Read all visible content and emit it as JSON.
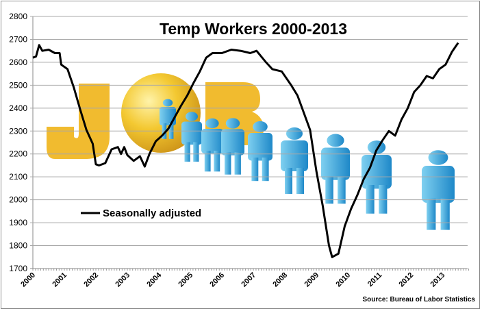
{
  "chart_data": {
    "type": "line",
    "title": "Temp Workers 2000-2013",
    "xlabel": "",
    "ylabel": "",
    "ylim": [
      1700,
      2800
    ],
    "xlim": [
      2000,
      2013.8
    ],
    "yticks": [
      "1700",
      "1800",
      "1900",
      "2000",
      "2100",
      "2200",
      "2300",
      "2400",
      "2500",
      "2600",
      "2700",
      "2800"
    ],
    "xticks": [
      "2000",
      "2001",
      "2002",
      "2003",
      "2004",
      "2005",
      "2006",
      "2007",
      "2008",
      "2009",
      "2010",
      "2011",
      "2012",
      "2013"
    ],
    "grid": "horizontal",
    "legend_position": "left-middle",
    "series": [
      {
        "name": "Seasonally adjusted",
        "color": "#000000",
        "x": [
          2000.0,
          2000.1,
          2000.2,
          2000.3,
          2000.5,
          2000.7,
          2000.85,
          2000.9,
          2001.1,
          2001.3,
          2001.5,
          2001.7,
          2001.9,
          2002.0,
          2002.1,
          2002.3,
          2002.5,
          2002.7,
          2002.8,
          2002.9,
          2003.0,
          2003.2,
          2003.4,
          2003.55,
          2003.7,
          2003.9,
          2004.1,
          2004.3,
          2004.5,
          2004.7,
          2004.9,
          2005.1,
          2005.3,
          2005.5,
          2005.7,
          2006.0,
          2006.3,
          2006.6,
          2006.9,
          2007.1,
          2007.4,
          2007.6,
          2007.9,
          2008.2,
          2008.4,
          2008.6,
          2008.8,
          2009.0,
          2009.2,
          2009.4,
          2009.5,
          2009.7,
          2009.9,
          2010.1,
          2010.3,
          2010.5,
          2010.7,
          2010.9,
          2011.1,
          2011.3,
          2011.5,
          2011.7,
          2011.9,
          2012.1,
          2012.3,
          2012.5,
          2012.7,
          2012.9,
          2013.1,
          2013.3,
          2013.5
        ],
        "values": [
          2620,
          2625,
          2675,
          2650,
          2655,
          2640,
          2640,
          2590,
          2570,
          2490,
          2395,
          2305,
          2245,
          2155,
          2150,
          2160,
          2220,
          2230,
          2200,
          2230,
          2195,
          2170,
          2190,
          2145,
          2200,
          2255,
          2280,
          2310,
          2360,
          2410,
          2455,
          2510,
          2560,
          2620,
          2640,
          2640,
          2655,
          2650,
          2640,
          2650,
          2600,
          2570,
          2560,
          2500,
          2455,
          2380,
          2305,
          2125,
          1975,
          1800,
          1750,
          1765,
          1885,
          1960,
          2020,
          2090,
          2140,
          2215,
          2260,
          2300,
          2280,
          2350,
          2400,
          2470,
          2500,
          2540,
          2530,
          2570,
          2590,
          2645,
          2685
        ]
      }
    ],
    "annotations": [
      "Source: Bureau of Labor Statistics"
    ]
  }
}
